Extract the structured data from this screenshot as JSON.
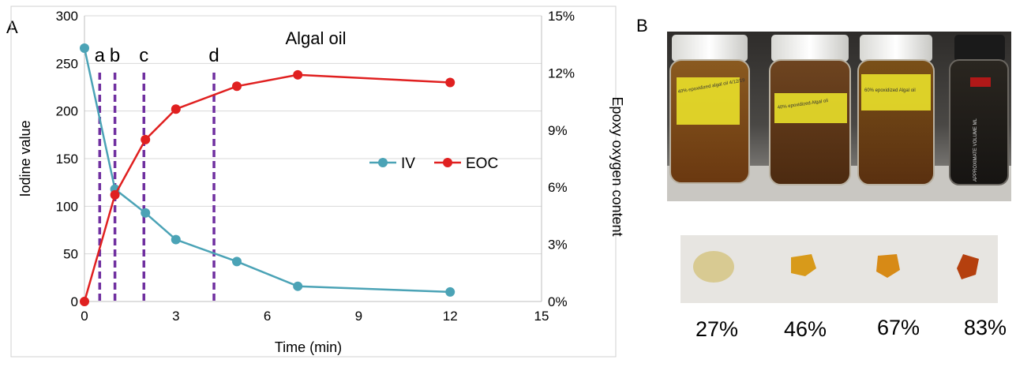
{
  "panel_a_label": "A",
  "panel_b_label": "B",
  "chart_data": {
    "type": "line",
    "title": "Algal oil",
    "xlabel": "Time (min)",
    "ylabel_left": "Iodine value",
    "ylabel_right": "Epoxy oxygen content",
    "xlim": [
      0,
      15
    ],
    "ylim_left": [
      0,
      300
    ],
    "ylim_right": [
      0,
      15
    ],
    "x_ticks": [
      "0",
      "3",
      "6",
      "9",
      "12",
      "15"
    ],
    "y_left_ticks": [
      "0",
      "50",
      "100",
      "150",
      "200",
      "250",
      "300"
    ],
    "y_right_ticks": [
      "0%",
      "3%",
      "6%",
      "9%",
      "12%",
      "15%"
    ],
    "grid": "horizontal",
    "legend_position": "center-right",
    "series": [
      {
        "name": "IV",
        "axis": "left",
        "color": "#4BA3B6",
        "x": [
          0,
          1,
          2,
          3,
          5,
          7,
          12
        ],
        "y": [
          266,
          118,
          93,
          65,
          42,
          16,
          10
        ]
      },
      {
        "name": "EOC",
        "axis": "right",
        "color": "#E02020",
        "x": [
          0,
          1,
          2,
          3,
          5,
          7,
          12
        ],
        "y": [
          0,
          5.6,
          8.5,
          10.1,
          11.3,
          11.9,
          11.5
        ]
      }
    ],
    "markers": [
      {
        "label": "a",
        "x": 0.5
      },
      {
        "label": "b",
        "x": 1.0
      },
      {
        "label": "c",
        "x": 1.95
      },
      {
        "label": "d",
        "x": 4.25
      }
    ],
    "marker_color": "#7030A0"
  },
  "jar_labels": [
    "40% epoxidized algal oil 4/12/19",
    "40% epoxidized Algal oil",
    "60% epoxidized Algal oil",
    "APPROXIMATE VOLUME ML"
  ],
  "percentages": [
    "27%",
    "46%",
    "67%",
    "83%"
  ]
}
